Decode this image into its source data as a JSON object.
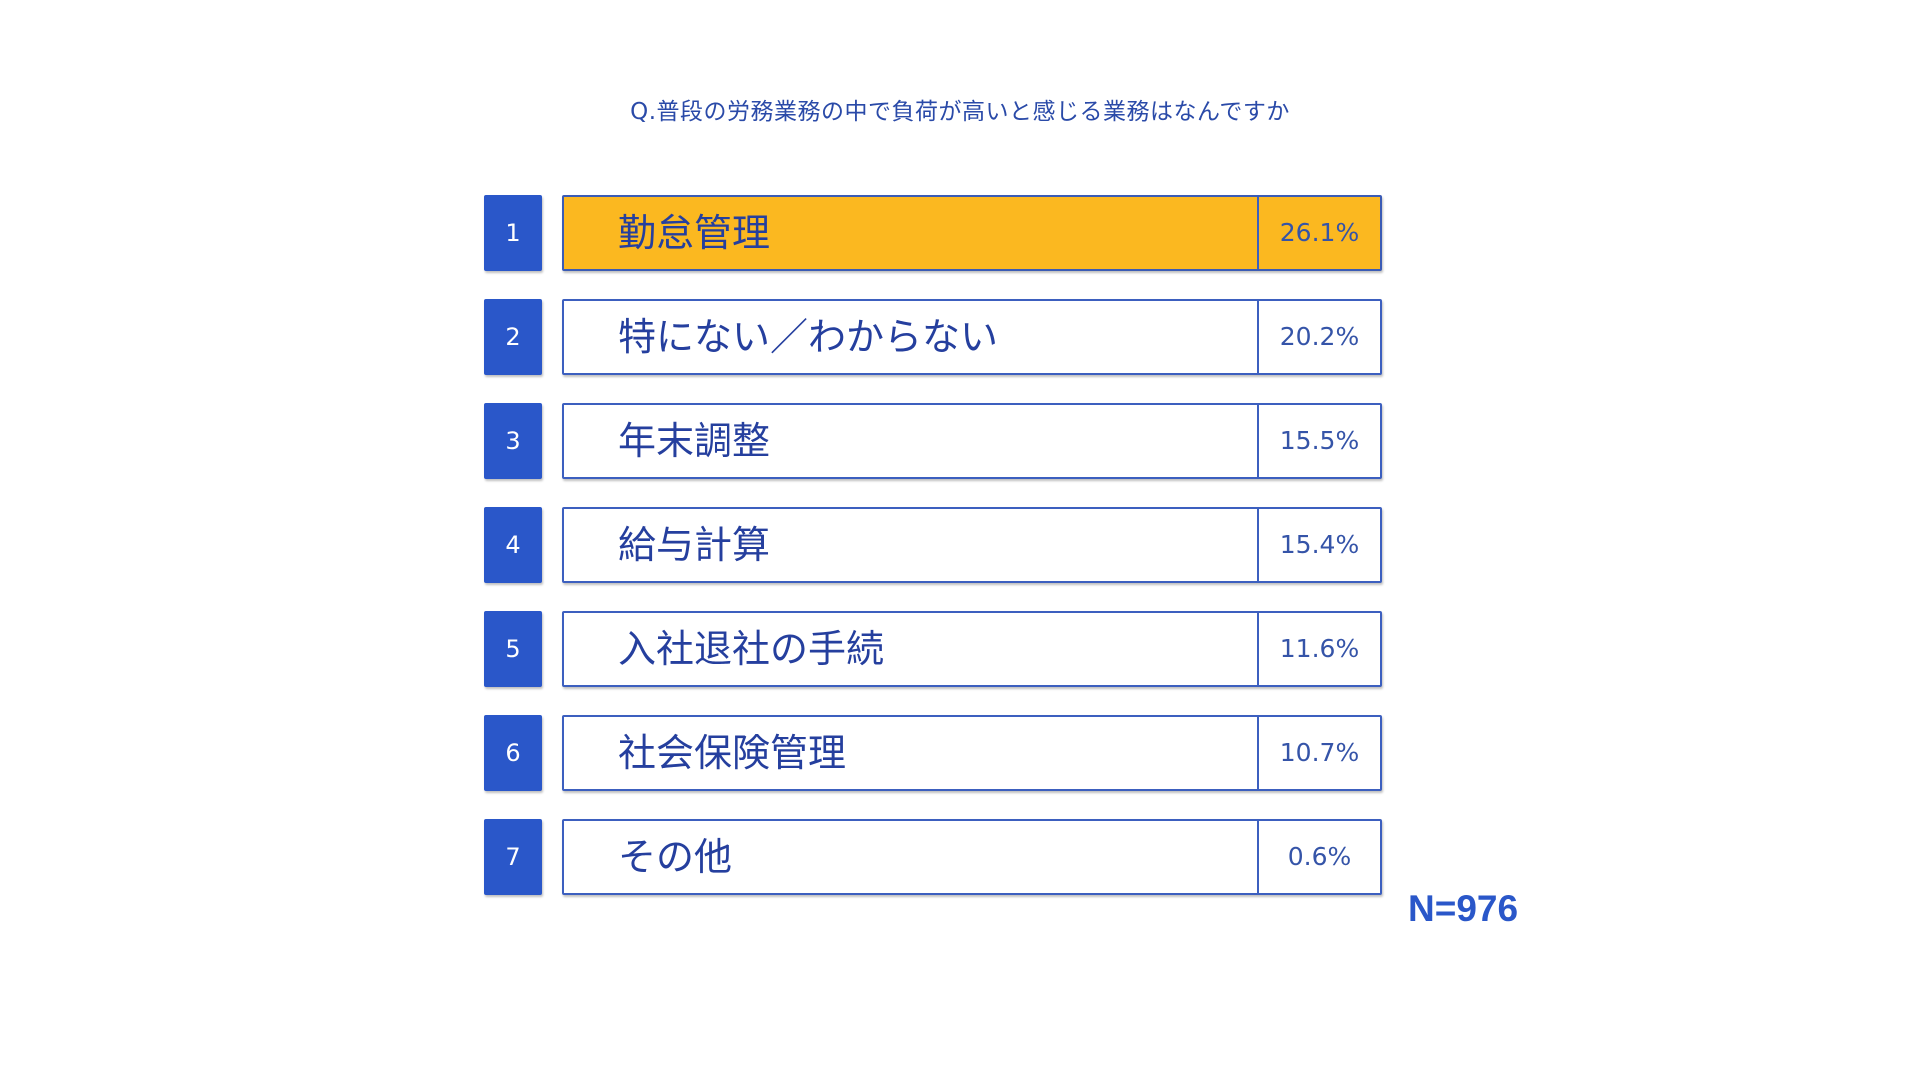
{
  "title": "Q.普段の労務業務の中で負荷が高いと感じる業務はなんですか",
  "sample_size": "N=976",
  "colors": {
    "rank_badge": "#2a57c9",
    "highlight_fill": "#fbb820",
    "text": "#253f9e",
    "border": "#3c5fbf"
  },
  "chart_data": {
    "type": "table",
    "title": "Q.普段の労務業務の中で負荷が高いと感じる業務はなんですか",
    "columns": [
      "rank",
      "item",
      "percent"
    ],
    "unit": "%",
    "rows": [
      {
        "rank": "1",
        "item": "勤怠管理",
        "value": 26.1,
        "value_label": "26.1%",
        "highlight": true
      },
      {
        "rank": "2",
        "item": "特にない／わからない",
        "value": 20.2,
        "value_label": "20.2%",
        "highlight": false
      },
      {
        "rank": "3",
        "item": "年末調整",
        "value": 15.5,
        "value_label": "15.5%",
        "highlight": false
      },
      {
        "rank": "4",
        "item": "給与計算",
        "value": 15.4,
        "value_label": "15.4%",
        "highlight": false
      },
      {
        "rank": "5",
        "item": "入社退社の手続",
        "value": 11.6,
        "value_label": "11.6%",
        "highlight": false
      },
      {
        "rank": "6",
        "item": "社会保険管理",
        "value": 10.7,
        "value_label": "10.7%",
        "highlight": false
      },
      {
        "rank": "7",
        "item": "その他",
        "value": 0.6,
        "value_label": "0.6%",
        "highlight": false
      }
    ],
    "sample_size": "N=976"
  }
}
